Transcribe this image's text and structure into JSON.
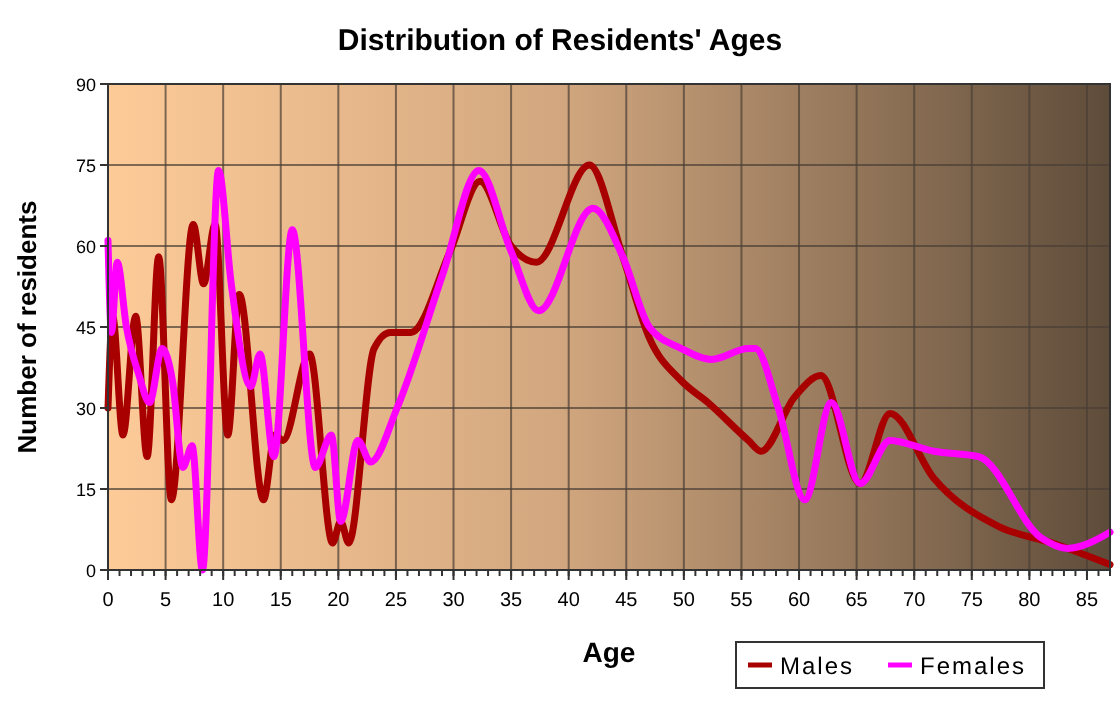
{
  "chart_data": {
    "type": "line",
    "title": "Distribution of Residents' Ages",
    "xlabel": "Age",
    "ylabel": "Number of residents",
    "xlim": [
      0,
      87
    ],
    "xticks": [
      0,
      5,
      10,
      15,
      20,
      25,
      30,
      35,
      40,
      45,
      50,
      55,
      60,
      65,
      70,
      75,
      80,
      85
    ],
    "ylim": [
      0,
      90
    ],
    "yticks": [
      0,
      15,
      30,
      45,
      60,
      75,
      90
    ],
    "grid": true,
    "legend": "bottom right",
    "marker": "none",
    "line_style": "solid",
    "series": [
      {
        "name": "Males",
        "color": "#a80000",
        "x": [
          0,
          0.4,
          1.3,
          2.4,
          3.4,
          4.4,
          5.5,
          7.4,
          8.3,
          9.3,
          10.4,
          11.4,
          13.5,
          14.5,
          15.2,
          17.5,
          19.5,
          20.2,
          20.9,
          23.1,
          24.5,
          26.3,
          29.7,
          32.3,
          35,
          37.2,
          41.8,
          44.7,
          47,
          49.8,
          52.1,
          55.6,
          56.7,
          59.6,
          61.9,
          65.3,
          67.9,
          71.7,
          77.4,
          82,
          87
        ],
        "values": [
          30,
          47,
          25,
          47,
          21,
          58,
          13,
          64,
          53,
          64,
          25,
          51,
          13,
          25,
          24,
          40,
          5,
          9,
          5,
          41,
          44,
          44,
          59,
          72,
          60,
          57,
          75,
          58,
          43,
          35,
          31,
          24,
          22,
          32,
          36,
          16,
          29,
          17,
          8,
          5,
          1
        ]
      },
      {
        "name": "Females",
        "color": "#ff00ff",
        "x": [
          0,
          0.3,
          0.8,
          1.6,
          2.7,
          3.6,
          4.7,
          5.6,
          6.5,
          7.3,
          8.2,
          9.6,
          10.7,
          12.4,
          13.2,
          14.4,
          16,
          18,
          19.4,
          20.2,
          21.7,
          22.8,
          25.1,
          29.1,
          32.2,
          35,
          37.4,
          42.1,
          44.7,
          47,
          49.8,
          52.4,
          55.6,
          56.2,
          58.2,
          60.5,
          62.8,
          65.3,
          67.9,
          71.7,
          75.6,
          81,
          83.3,
          87
        ],
        "values": [
          61,
          44,
          57,
          45,
          36,
          31,
          41,
          35,
          19,
          23,
          0,
          74,
          53,
          34,
          40,
          21,
          63,
          19,
          25,
          9,
          24,
          20,
          30,
          55,
          74,
          59,
          48,
          67,
          58,
          45,
          41,
          39,
          41,
          41,
          30,
          13,
          31,
          16,
          24,
          22,
          21,
          6,
          4,
          7
        ]
      }
    ]
  }
}
